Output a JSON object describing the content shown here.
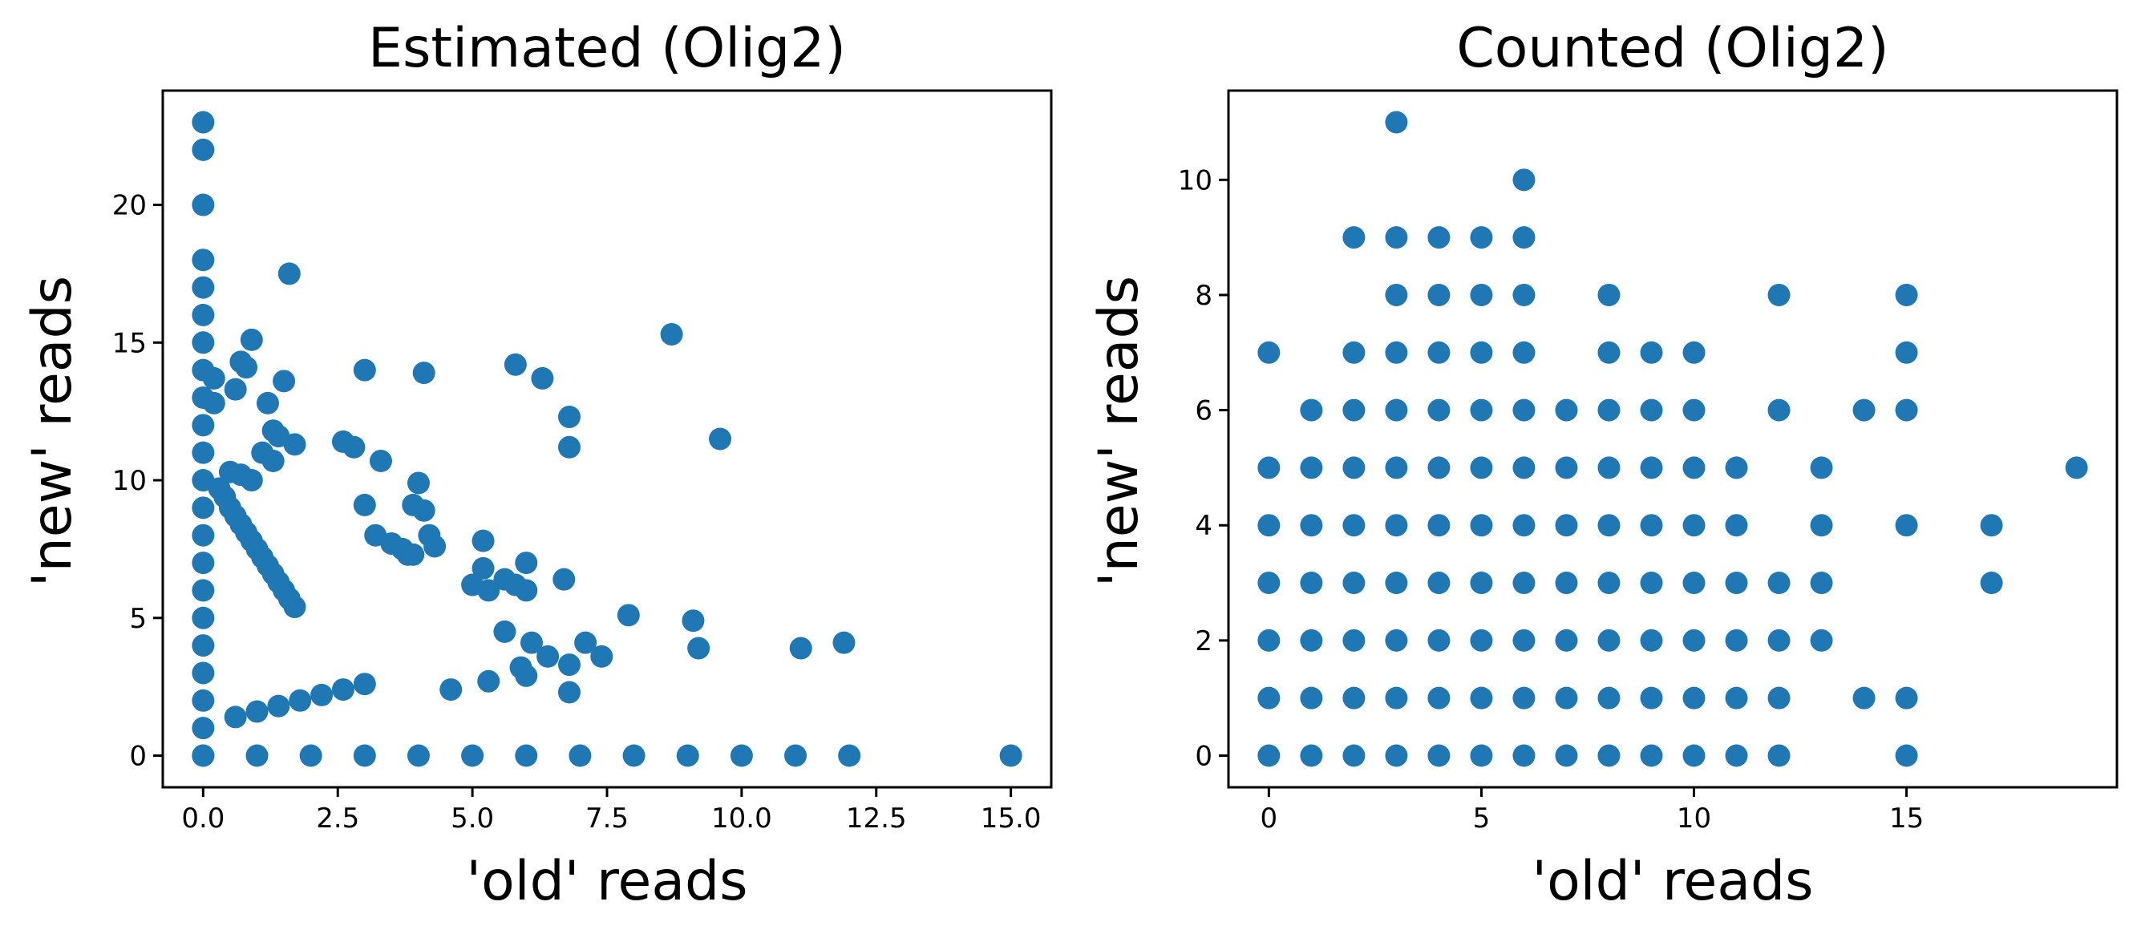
{
  "chart_data": [
    {
      "type": "scatter",
      "title": "Estimated (Olig2)",
      "xlabel": "'old' reads",
      "ylabel": "'new' reads",
      "xlim": [
        -0.75,
        15.75
      ],
      "ylim": [
        -1.15,
        24.15
      ],
      "xticks": [
        0.0,
        2.5,
        5.0,
        7.5,
        10.0,
        12.5,
        15.0
      ],
      "xtick_labels": [
        "0.0",
        "2.5",
        "5.0",
        "7.5",
        "10.0",
        "12.5",
        "15.0"
      ],
      "yticks": [
        0,
        5,
        10,
        15,
        20
      ],
      "ytick_labels": [
        "0",
        "5",
        "10",
        "15",
        "20"
      ],
      "color": "#1f77b4",
      "grid": false,
      "x": [
        0,
        0,
        0,
        0,
        0,
        0,
        0,
        0,
        0,
        0,
        0,
        0,
        0,
        0,
        0,
        0,
        0,
        0,
        0,
        0,
        0,
        0,
        0,
        1,
        2,
        3,
        4,
        5,
        6,
        7,
        8,
        9,
        10,
        11,
        12,
        15,
        1.6,
        0.9,
        0.7,
        0.8,
        1.5,
        0.2,
        0.6,
        0.2,
        1.2,
        1.3,
        1.4,
        1.7,
        1.1,
        1.3,
        0.5,
        0.7,
        0.9,
        0.3,
        0.4,
        0.5,
        0.6,
        0.7,
        0.8,
        0.9,
        1.0,
        1.1,
        1.2,
        1.3,
        1.4,
        1.5,
        1.6,
        1.7,
        0.6,
        1.0,
        1.4,
        1.8,
        2.2,
        2.6,
        3.0,
        3.0,
        4.1,
        5.8,
        6.3,
        8.7,
        9.6,
        6.8,
        6.8,
        2.6,
        2.8,
        3.3,
        4.0,
        3.9,
        4.1,
        3.8,
        3.0,
        3.2,
        3.5,
        3.7,
        3.9,
        4.2,
        4.3,
        5.2,
        5.2,
        6.0,
        5.0,
        5.3,
        5.6,
        5.8,
        6.0,
        6.7,
        7.1,
        7.4,
        7.9,
        9.1,
        9.2,
        11.1,
        11.9,
        5.6,
        6.1,
        6.4,
        6.8,
        6.8,
        4.6,
        5.3,
        5.9,
        6.0
      ],
      "y": [
        23,
        22,
        20,
        18,
        17,
        16,
        15,
        14,
        13,
        12,
        11,
        10,
        9,
        8,
        7,
        6,
        5,
        4,
        3,
        2,
        1,
        0,
        0,
        0,
        0,
        0,
        0,
        0,
        0,
        0,
        0,
        0,
        0,
        0,
        0,
        0,
        17.5,
        15.1,
        14.3,
        14.1,
        13.6,
        13.7,
        13.3,
        12.8,
        12.8,
        11.8,
        11.6,
        11.3,
        11.0,
        10.7,
        10.3,
        10.2,
        10.0,
        9.7,
        9.4,
        9.0,
        8.7,
        8.4,
        8.1,
        7.8,
        7.5,
        7.2,
        6.9,
        6.6,
        6.3,
        6.0,
        5.7,
        5.4,
        1.4,
        1.6,
        1.8,
        2.0,
        2.2,
        2.4,
        2.6,
        14.0,
        13.9,
        14.2,
        13.7,
        15.3,
        11.5,
        12.3,
        11.2,
        11.4,
        11.2,
        10.7,
        9.9,
        9.1,
        8.9,
        7.3,
        9.1,
        8.0,
        7.7,
        7.5,
        7.3,
        8.0,
        7.6,
        7.8,
        6.8,
        7.0,
        6.2,
        6.0,
        6.4,
        6.2,
        6.0,
        6.4,
        4.1,
        3.6,
        5.1,
        4.9,
        3.9,
        3.9,
        4.1,
        4.5,
        4.1,
        3.6,
        3.3,
        2.3,
        2.4,
        2.7,
        3.2,
        2.9
      ]
    },
    {
      "type": "scatter",
      "title": "Counted (Olig2)",
      "xlabel": "'old' reads",
      "ylabel": "'new' reads",
      "xlim": [
        -0.95,
        19.95
      ],
      "ylim": [
        -0.55,
        11.55
      ],
      "xticks": [
        0,
        5,
        10,
        15
      ],
      "xtick_labels": [
        "0",
        "5",
        "10",
        "15"
      ],
      "yticks": [
        0,
        2,
        4,
        6,
        8,
        10
      ],
      "ytick_labels": [
        "0",
        "2",
        "4",
        "6",
        "8",
        "10"
      ],
      "color": "#1f77b4",
      "grid": false,
      "x": [
        0,
        0,
        0,
        0,
        0,
        0,
        0,
        1,
        1,
        1,
        1,
        1,
        1,
        1,
        2,
        2,
        2,
        2,
        2,
        2,
        2,
        2,
        2,
        3,
        3,
        3,
        3,
        3,
        3,
        3,
        3,
        3,
        3,
        3,
        4,
        4,
        4,
        4,
        4,
        4,
        4,
        4,
        4,
        4,
        5,
        5,
        5,
        5,
        5,
        5,
        5,
        5,
        5,
        5,
        6,
        6,
        6,
        6,
        6,
        6,
        6,
        6,
        6,
        6,
        6,
        7,
        7,
        7,
        7,
        7,
        7,
        7,
        8,
        8,
        8,
        8,
        8,
        8,
        8,
        8,
        8,
        9,
        9,
        9,
        9,
        9,
        9,
        9,
        9,
        10,
        10,
        10,
        10,
        10,
        10,
        10,
        10,
        11,
        11,
        11,
        11,
        11,
        11,
        12,
        12,
        12,
        12,
        12,
        12,
        13,
        13,
        13,
        13,
        14,
        14,
        15,
        15,
        15,
        15,
        15,
        15,
        17,
        17,
        19
      ],
      "y": [
        0,
        1,
        2,
        3,
        4,
        5,
        7,
        0,
        1,
        2,
        3,
        4,
        5,
        6,
        0,
        1,
        2,
        3,
        4,
        5,
        6,
        7,
        9,
        0,
        1,
        2,
        3,
        4,
        5,
        6,
        7,
        8,
        9,
        11,
        0,
        1,
        2,
        3,
        4,
        5,
        6,
        7,
        8,
        9,
        0,
        1,
        2,
        3,
        4,
        5,
        6,
        7,
        8,
        9,
        0,
        1,
        2,
        3,
        4,
        5,
        6,
        7,
        8,
        9,
        10,
        0,
        1,
        2,
        3,
        4,
        5,
        6,
        0,
        1,
        2,
        3,
        4,
        5,
        6,
        7,
        8,
        0,
        1,
        2,
        3,
        4,
        5,
        6,
        7,
        0,
        1,
        2,
        3,
        4,
        5,
        6,
        7,
        0,
        1,
        2,
        3,
        4,
        5,
        0,
        1,
        2,
        3,
        6,
        8,
        2,
        3,
        4,
        5,
        1,
        6,
        0,
        1,
        4,
        6,
        7,
        8,
        3,
        4,
        5
      ]
    }
  ]
}
